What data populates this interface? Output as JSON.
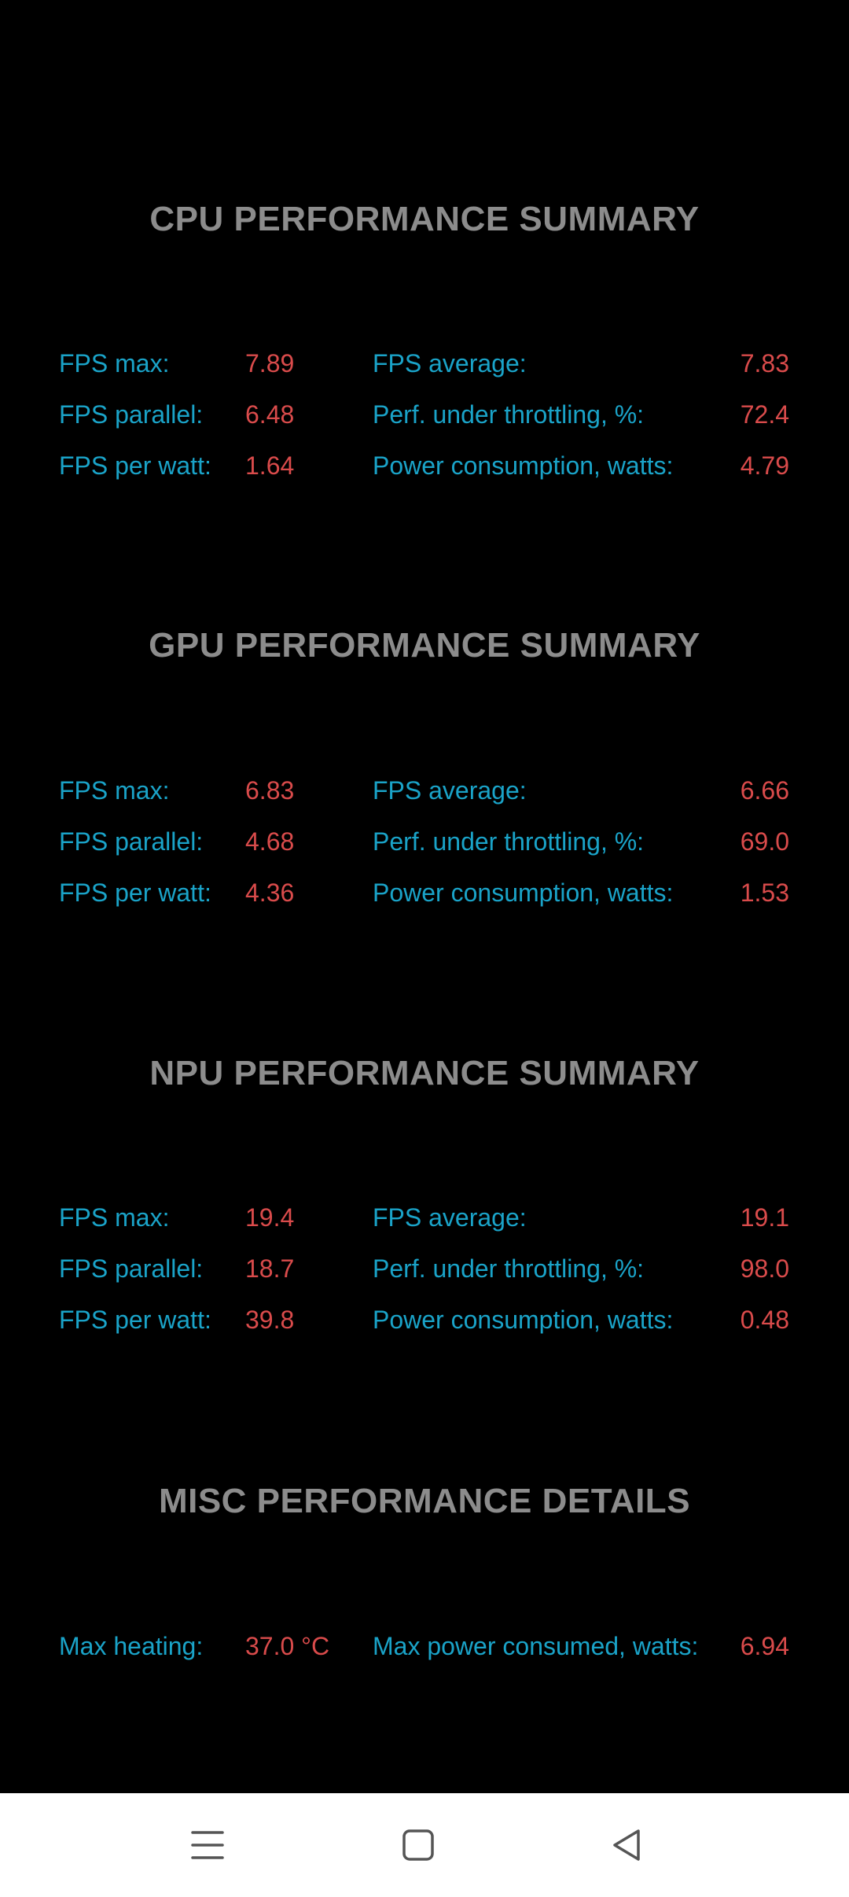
{
  "sections": [
    {
      "title": "CPU PERFORMANCE SUMMARY",
      "rows": [
        {
          "l1": "FPS max:",
          "v1": "7.89",
          "l2": "FPS average:",
          "v2": "7.83"
        },
        {
          "l1": "FPS parallel:",
          "v1": "6.48",
          "l2": "Perf. under throttling, %:",
          "v2": "72.4"
        },
        {
          "l1": "FPS per watt:",
          "v1": "1.64",
          "l2": "Power consumption, watts:",
          "v2": "4.79"
        }
      ]
    },
    {
      "title": "GPU PERFORMANCE SUMMARY",
      "rows": [
        {
          "l1": "FPS max:",
          "v1": "6.83",
          "l2": "FPS average:",
          "v2": "6.66"
        },
        {
          "l1": "FPS parallel:",
          "v1": "4.68",
          "l2": "Perf. under throttling, %:",
          "v2": "69.0"
        },
        {
          "l1": "FPS per watt:",
          "v1": "4.36",
          "l2": "Power consumption, watts:",
          "v2": "1.53"
        }
      ]
    },
    {
      "title": "NPU PERFORMANCE SUMMARY",
      "rows": [
        {
          "l1": "FPS max:",
          "v1": "19.4",
          "l2": "FPS average:",
          "v2": "19.1"
        },
        {
          "l1": "FPS parallel:",
          "v1": "18.7",
          "l2": "Perf. under throttling, %:",
          "v2": "98.0"
        },
        {
          "l1": "FPS per watt:",
          "v1": "39.8",
          "l2": "Power consumption, watts:",
          "v2": "0.48"
        }
      ]
    },
    {
      "title": "MISC PERFORMANCE DETAILS",
      "rows": [
        {
          "l1": "Max heating:",
          "v1": "37.0 °C",
          "l2": "Max power consumed, watts:",
          "v2": "6.94"
        }
      ]
    }
  ],
  "navbar": {
    "menu_icon": "menu-icon",
    "home_icon": "square-home-icon",
    "back_icon": "triangle-back-icon"
  },
  "colors": {
    "background": "#000000",
    "title": "#8c8c8c",
    "label": "#1aa3c8",
    "value": "#d94b4b",
    "navbar": "#ffffff",
    "nav_icon": "#555555"
  }
}
